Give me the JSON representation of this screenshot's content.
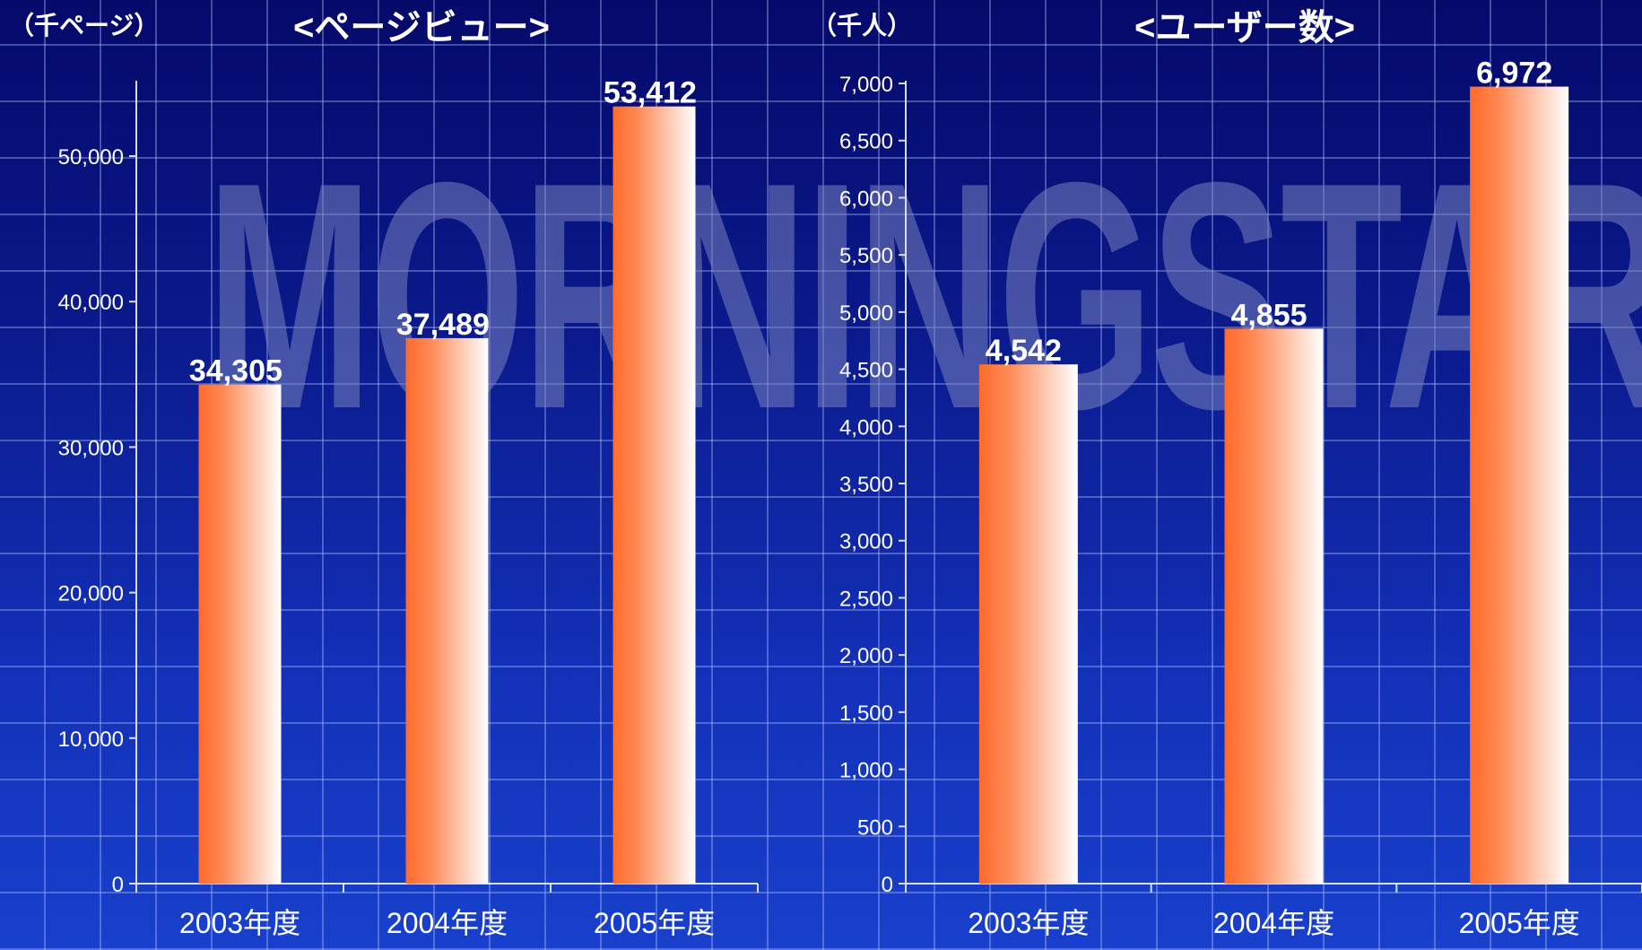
{
  "watermark": {
    "text": "MORNINGSTAR"
  },
  "colors": {
    "bar_left": "#ff6a2a",
    "bar_right": "#ffffff",
    "text": "#ffffff"
  },
  "chart_data": [
    {
      "type": "bar",
      "title": "<ページビュー>",
      "unit": "（千ページ）",
      "categories": [
        "2003年度",
        "2004年度",
        "2005年度"
      ],
      "values": [
        34305,
        37489,
        53412
      ],
      "value_labels": [
        "34,305",
        "37,489",
        "53,412"
      ],
      "ylim": [
        0,
        55000
      ],
      "yticks": [
        0,
        10000,
        20000,
        30000,
        40000,
        50000
      ],
      "ytick_labels": [
        "0",
        "10,000",
        "20,000",
        "30,000",
        "40,000",
        "50,000"
      ],
      "grid": true
    },
    {
      "type": "bar",
      "title": "<ユーザー数>",
      "unit": "（千人）",
      "categories": [
        "2003年度",
        "2004年度",
        "2005年度"
      ],
      "values": [
        4542,
        4855,
        6972
      ],
      "value_labels": [
        "4,542",
        "4,855",
        "6,972"
      ],
      "ylim": [
        0,
        7000
      ],
      "yticks": [
        0,
        500,
        1000,
        1500,
        2000,
        2500,
        3000,
        3500,
        4000,
        4500,
        5000,
        5500,
        6000,
        6500,
        7000
      ],
      "ytick_labels": [
        "0",
        "500",
        "1,000",
        "1,500",
        "2,000",
        "2,500",
        "3,000",
        "3,500",
        "4,000",
        "4,500",
        "5,000",
        "5,500",
        "6,000",
        "6,500",
        "7,000"
      ],
      "grid": true
    }
  ]
}
